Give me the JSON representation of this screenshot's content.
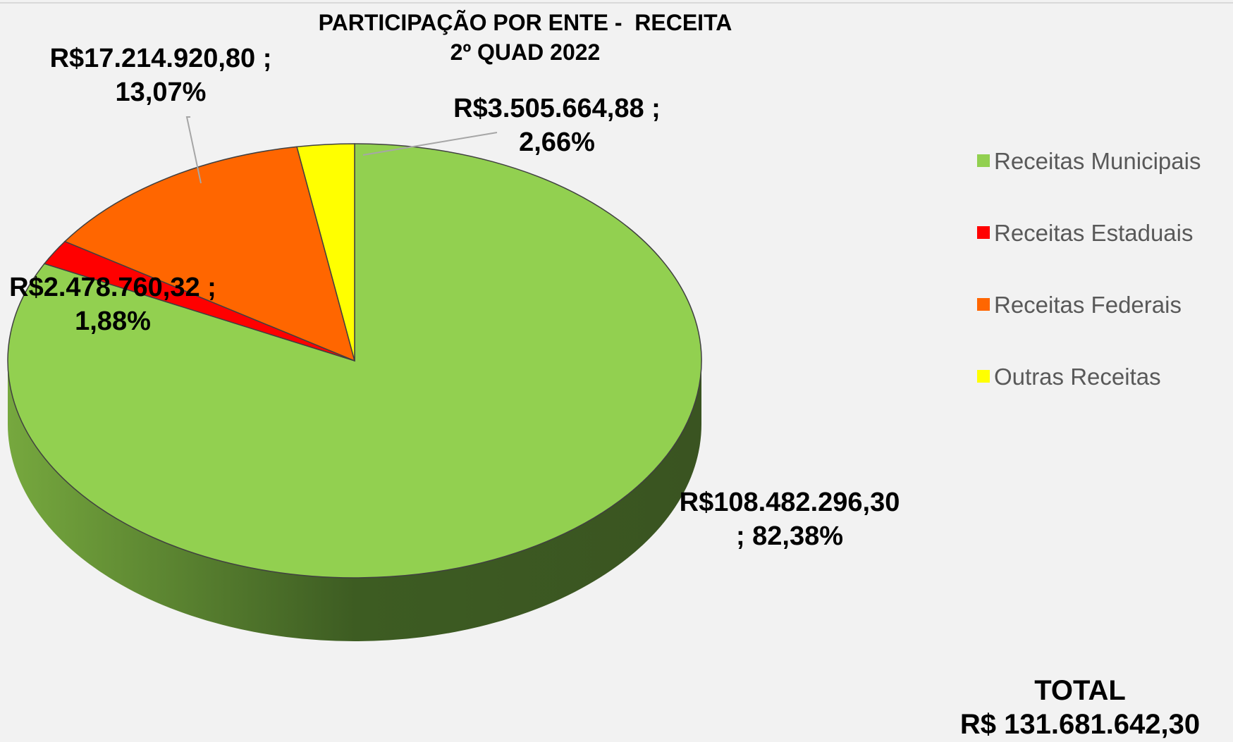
{
  "chart_data": {
    "type": "pie",
    "title": "PARTICIPAÇÃO POR ENTE -  RECEITA",
    "subtitle": "2º QUAD 2022",
    "categories": [
      "Receitas Municipais",
      "Receitas Estaduais",
      "Receitas Federais",
      "Outras Receitas"
    ],
    "values": [
      108482296.3,
      2478760.32,
      17214920.8,
      3505664.88
    ],
    "value_labels": [
      "R$108.482.296,30\n; 82,38%",
      "R$2.478.760,32 ;\n1,88%",
      "R$17.214.920,80 ;\n13,07%",
      "R$3.505.664,88 ;\n2,66%"
    ],
    "colors": [
      "#92d050",
      "#ff0000",
      "#ff6600",
      "#ffff00"
    ],
    "legend": "right",
    "annotations": [
      "TOTAL",
      "R$ 131.681.642,30"
    ]
  }
}
